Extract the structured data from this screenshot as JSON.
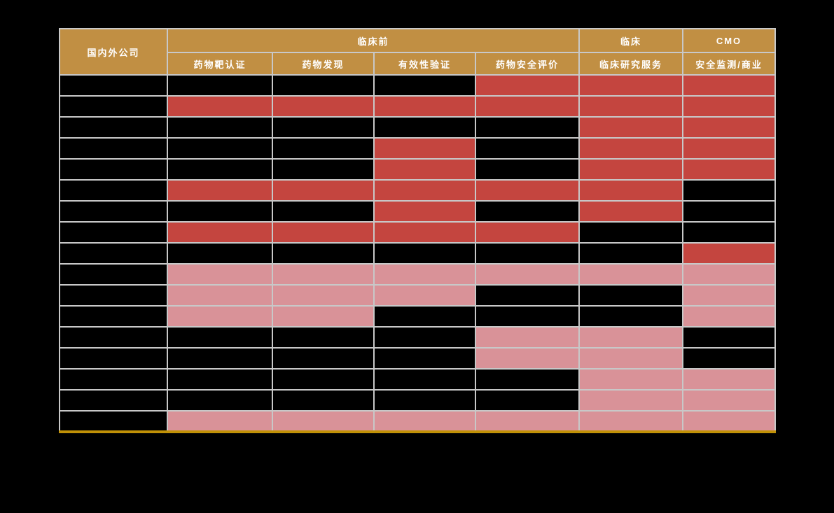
{
  "colors": {
    "page_background": "#000000",
    "header_gold": "#C18F43",
    "header_text": "#FFFFFF",
    "grid_line": "#C8C8C8",
    "bottom_rule": "#C09107",
    "cell_red": "#C4453F",
    "cell_pink": "#D99298",
    "cell_black": "#000000"
  },
  "chart_data": {
    "type": "table",
    "company_column_header": "国内外公司",
    "column_groups": [
      {
        "label": "临床前",
        "span": 4
      },
      {
        "label": "临床",
        "span": 1
      },
      {
        "label": "CMO",
        "span": 1
      }
    ],
    "columns": [
      "药物靶认证",
      "药物发现",
      "有效性验证",
      "药物安全评价",
      "临床研究服务",
      "安全监测/商业"
    ],
    "state_colors": {
      "red": "#C4453F",
      "pink": "#D99298",
      "black": "#000000"
    },
    "rows": [
      {
        "company": "",
        "cells": [
          "black",
          "black",
          "black",
          "red",
          "red",
          "red"
        ]
      },
      {
        "company": "",
        "cells": [
          "red",
          "red",
          "red",
          "red",
          "red",
          "red"
        ]
      },
      {
        "company": "",
        "cells": [
          "black",
          "black",
          "black",
          "black",
          "red",
          "red"
        ]
      },
      {
        "company": "",
        "cells": [
          "black",
          "black",
          "red",
          "black",
          "red",
          "red"
        ]
      },
      {
        "company": "",
        "cells": [
          "black",
          "black",
          "red",
          "black",
          "red",
          "red"
        ]
      },
      {
        "company": "",
        "cells": [
          "red",
          "red",
          "red",
          "red",
          "red",
          "black"
        ]
      },
      {
        "company": "",
        "cells": [
          "black",
          "black",
          "red",
          "black",
          "red",
          "black"
        ]
      },
      {
        "company": "",
        "cells": [
          "red",
          "red",
          "red",
          "red",
          "black",
          "black"
        ]
      },
      {
        "company": "",
        "cells": [
          "black",
          "black",
          "black",
          "black",
          "black",
          "red"
        ]
      },
      {
        "company": "",
        "cells": [
          "pink",
          "pink",
          "pink",
          "pink",
          "pink",
          "pink"
        ]
      },
      {
        "company": "",
        "cells": [
          "pink",
          "pink",
          "pink",
          "black",
          "black",
          "pink"
        ]
      },
      {
        "company": "",
        "cells": [
          "pink",
          "pink",
          "black",
          "black",
          "black",
          "pink"
        ]
      },
      {
        "company": "",
        "cells": [
          "black",
          "black",
          "black",
          "pink",
          "pink",
          "black"
        ]
      },
      {
        "company": "",
        "cells": [
          "black",
          "black",
          "black",
          "pink",
          "pink",
          "black"
        ]
      },
      {
        "company": "",
        "cells": [
          "black",
          "black",
          "black",
          "black",
          "pink",
          "pink"
        ]
      },
      {
        "company": "",
        "cells": [
          "black",
          "black",
          "black",
          "black",
          "pink",
          "pink"
        ]
      },
      {
        "company": "",
        "cells": [
          "pink",
          "pink",
          "pink",
          "pink",
          "pink",
          "pink"
        ]
      }
    ]
  }
}
